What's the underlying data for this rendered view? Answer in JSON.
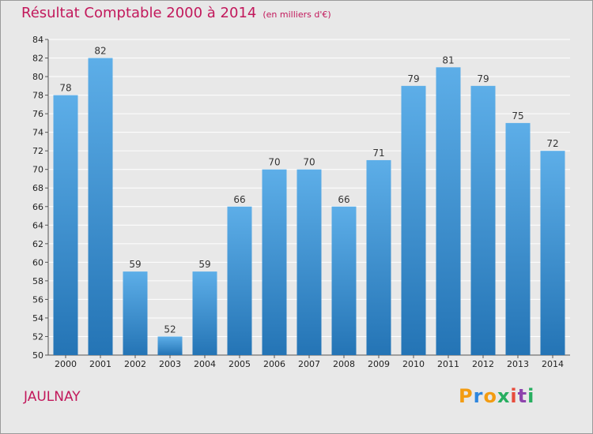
{
  "title": {
    "main": "Résultat Comptable 2000 à 2014",
    "subtitle": "(en milliers d'€)"
  },
  "commune": "JAULNAY",
  "logo": {
    "text": "Proxiti",
    "letters": [
      "P",
      "r",
      "o",
      "x",
      "i",
      "t",
      "i"
    ],
    "colors": [
      "#f39c12",
      "#2e86de",
      "#f39c12",
      "#27ae60",
      "#e74c3c",
      "#8e44ad",
      "#27ae60"
    ]
  },
  "colors": {
    "bar_top": "#5daee8",
    "bar_bottom": "#2474b5",
    "title": "#c2185b",
    "grid": "#ffffff"
  },
  "chart_data": {
    "type": "bar",
    "title": "Résultat Comptable 2000 à 2014",
    "ylabel": "en milliers d'€",
    "xlabel": "",
    "categories": [
      "2000",
      "2001",
      "2002",
      "2003",
      "2004",
      "2005",
      "2006",
      "2007",
      "2008",
      "2009",
      "2010",
      "2011",
      "2012",
      "2013",
      "2014"
    ],
    "values": [
      78,
      82,
      59,
      52,
      59,
      66,
      70,
      70,
      66,
      71,
      79,
      81,
      79,
      75,
      72
    ],
    "ylim": [
      50,
      84
    ],
    "yticks": [
      50,
      52,
      54,
      56,
      58,
      60,
      62,
      64,
      66,
      68,
      70,
      72,
      74,
      76,
      78,
      80,
      82,
      84
    ],
    "grid": true
  }
}
